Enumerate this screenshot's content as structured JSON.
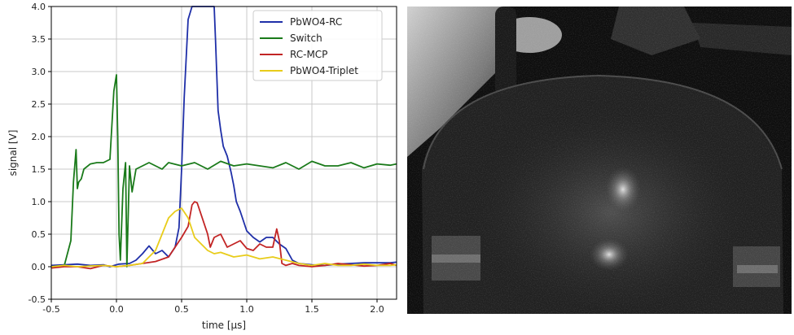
{
  "chart_data": {
    "type": "line",
    "title": "",
    "xlabel": "time [μs]",
    "ylabel": "signal [V]",
    "xlim": [
      -0.5,
      2.15
    ],
    "ylim": [
      -0.5,
      4.0
    ],
    "xticks": [
      "-0.5",
      "0.0",
      "0.5",
      "1.0",
      "1.5",
      "2.0"
    ],
    "yticks": [
      "-0.5",
      "0.0",
      "0.5",
      "1.0",
      "1.5",
      "2.0",
      "2.5",
      "3.0",
      "3.5",
      "4.0"
    ],
    "grid": true,
    "legend_position": "top-right",
    "series": [
      {
        "name": "PbWO4-RC",
        "color": "#1f2fa8",
        "x": [
          -0.5,
          -0.4,
          -0.3,
          -0.2,
          -0.1,
          -0.05,
          0.0,
          0.02,
          0.1,
          0.15,
          0.2,
          0.25,
          0.3,
          0.35,
          0.4,
          0.45,
          0.48,
          0.5,
          0.52,
          0.55,
          0.58,
          0.6,
          0.62,
          0.65,
          0.7,
          0.75,
          0.76,
          0.78,
          0.8,
          0.82,
          0.85,
          0.88,
          0.9,
          0.92,
          0.95,
          1.0,
          1.05,
          1.1,
          1.15,
          1.2,
          1.25,
          1.3,
          1.35,
          1.4,
          1.5,
          1.6,
          1.7,
          1.8,
          1.9,
          2.0,
          2.1,
          2.15
        ],
        "y": [
          0.02,
          0.03,
          0.04,
          0.02,
          0.03,
          0.0,
          0.03,
          0.04,
          0.05,
          0.1,
          0.2,
          0.32,
          0.2,
          0.25,
          0.15,
          0.3,
          0.6,
          1.5,
          2.6,
          3.8,
          4.05,
          4.1,
          4.1,
          4.1,
          4.1,
          4.1,
          3.5,
          2.4,
          2.1,
          1.85,
          1.7,
          1.45,
          1.25,
          1.0,
          0.85,
          0.55,
          0.45,
          0.38,
          0.45,
          0.45,
          0.35,
          0.28,
          0.1,
          0.05,
          0.03,
          0.02,
          0.04,
          0.05,
          0.06,
          0.06,
          0.06,
          0.07
        ]
      },
      {
        "name": "Switch",
        "color": "#1a7a1a",
        "x": [
          -0.5,
          -0.4,
          -0.35,
          -0.33,
          -0.31,
          -0.3,
          -0.29,
          -0.27,
          -0.25,
          -0.2,
          -0.15,
          -0.1,
          -0.05,
          -0.02,
          0.0,
          0.01,
          0.02,
          0.03,
          0.05,
          0.07,
          0.08,
          0.1,
          0.12,
          0.15,
          0.2,
          0.25,
          0.3,
          0.35,
          0.4,
          0.5,
          0.6,
          0.7,
          0.8,
          0.9,
          1.0,
          1.1,
          1.2,
          1.3,
          1.4,
          1.5,
          1.6,
          1.7,
          1.8,
          1.9,
          2.0,
          2.1,
          2.15
        ],
        "y": [
          0.0,
          0.02,
          0.4,
          1.3,
          1.8,
          1.2,
          1.3,
          1.35,
          1.5,
          1.58,
          1.6,
          1.6,
          1.65,
          2.7,
          2.95,
          2.0,
          0.5,
          0.1,
          1.2,
          1.6,
          0.0,
          1.55,
          1.15,
          1.5,
          1.55,
          1.6,
          1.55,
          1.5,
          1.6,
          1.55,
          1.6,
          1.5,
          1.62,
          1.55,
          1.58,
          1.55,
          1.52,
          1.6,
          1.5,
          1.62,
          1.55,
          1.55,
          1.6,
          1.52,
          1.58,
          1.56,
          1.58
        ]
      },
      {
        "name": "RC-MCP",
        "color": "#c22424",
        "x": [
          -0.5,
          -0.4,
          -0.3,
          -0.2,
          -0.1,
          0.0,
          0.1,
          0.2,
          0.3,
          0.4,
          0.45,
          0.5,
          0.55,
          0.58,
          0.6,
          0.62,
          0.65,
          0.7,
          0.72,
          0.75,
          0.8,
          0.85,
          0.9,
          0.95,
          1.0,
          1.05,
          1.1,
          1.15,
          1.2,
          1.23,
          1.25,
          1.27,
          1.3,
          1.35,
          1.4,
          1.5,
          1.6,
          1.7,
          1.8,
          1.9,
          2.0,
          2.1,
          2.15
        ],
        "y": [
          -0.02,
          0.0,
          0.0,
          -0.03,
          0.02,
          0.0,
          0.02,
          0.05,
          0.08,
          0.15,
          0.3,
          0.45,
          0.62,
          0.95,
          1.0,
          0.98,
          0.8,
          0.5,
          0.3,
          0.45,
          0.5,
          0.3,
          0.35,
          0.4,
          0.28,
          0.25,
          0.35,
          0.3,
          0.3,
          0.58,
          0.4,
          0.05,
          0.02,
          0.05,
          0.02,
          0.0,
          0.02,
          0.05,
          0.03,
          0.01,
          0.02,
          0.05,
          0.02
        ]
      },
      {
        "name": "PbWO4-Triplet",
        "color": "#e8cc1a",
        "x": [
          -0.5,
          -0.4,
          -0.3,
          -0.2,
          -0.1,
          0.0,
          0.1,
          0.2,
          0.3,
          0.35,
          0.4,
          0.45,
          0.5,
          0.55,
          0.6,
          0.65,
          0.7,
          0.75,
          0.8,
          0.9,
          1.0,
          1.1,
          1.2,
          1.3,
          1.4,
          1.5,
          1.6,
          1.7,
          1.8,
          1.9,
          2.0,
          2.1,
          2.15
        ],
        "y": [
          0.0,
          0.02,
          0.0,
          0.01,
          0.02,
          0.0,
          0.02,
          0.05,
          0.25,
          0.5,
          0.75,
          0.85,
          0.9,
          0.75,
          0.45,
          0.35,
          0.25,
          0.2,
          0.22,
          0.15,
          0.18,
          0.12,
          0.15,
          0.1,
          0.05,
          0.02,
          0.05,
          0.02,
          0.02,
          0.04,
          0.02,
          0.02,
          0.03
        ]
      }
    ]
  }
}
